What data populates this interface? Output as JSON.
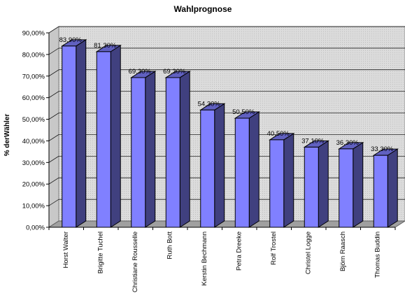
{
  "chart_data": {
    "type": "bar",
    "title": "Wahlprognose",
    "xlabel": "",
    "ylabel": "% derWähler",
    "categories": [
      "Horst Walter",
      "Brigitte Tuchel",
      "Christiane Rousselle",
      "Ruth Bott",
      "Kerstin Bechmann",
      "Petra Dreeke",
      "Rolf Trostel",
      "Christel Logge",
      "Björn Raasch",
      "Thomas Buddin"
    ],
    "values": [
      83.9,
      81.3,
      69.3,
      69.3,
      54.3,
      50.5,
      40.5,
      37.1,
      36.3,
      33.3
    ],
    "data_labels": [
      "83,90%",
      "81,30%",
      "69,30%",
      "69,30%",
      "54,30%",
      "50,50%",
      "40,50%",
      "37,10%",
      "36,30%",
      "33,30%"
    ],
    "ylim": [
      0,
      90
    ],
    "yticks": [
      "0,00%",
      "10,00%",
      "20,00%",
      "30,00%",
      "40,00%",
      "50,00%",
      "60,00%",
      "70,00%",
      "80,00%",
      "90,00%"
    ],
    "grid": true,
    "legend": "none",
    "colors": {
      "bar_front": "#8080ff",
      "bar_side": "#40407f",
      "bar_top": "#6060c0",
      "wall": "#d9d9d9",
      "floor": "#a0a0a0",
      "outline": "#000000"
    }
  }
}
